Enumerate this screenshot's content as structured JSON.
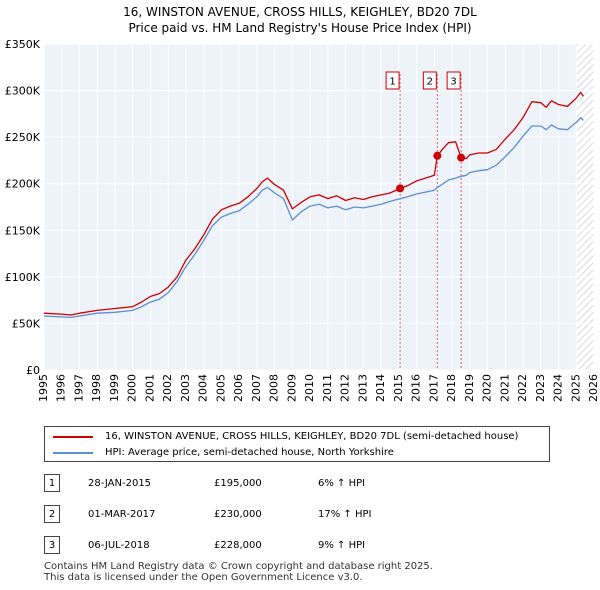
{
  "header": {
    "title_line1": "16, WINSTON AVENUE, CROSS HILLS, KEIGHLEY, BD20 7DL",
    "title_line2": "Price paid vs. HM Land Registry's House Price Index (HPI)"
  },
  "chart_data": {
    "type": "line",
    "title": "16, WINSTON AVENUE, CROSS HILLS, KEIGHLEY, BD20 7DL — Price paid vs. HM Land Registry's House Price Index (HPI)",
    "xlabel": "",
    "ylabel": "",
    "xlim": [
      1995,
      2026
    ],
    "ylim": [
      0,
      350000
    ],
    "y_ticks": [
      {
        "value": 0,
        "label": "£0"
      },
      {
        "value": 50000,
        "label": "£50K"
      },
      {
        "value": 100000,
        "label": "£100K"
      },
      {
        "value": 150000,
        "label": "£150K"
      },
      {
        "value": 200000,
        "label": "£200K"
      },
      {
        "value": 250000,
        "label": "£250K"
      },
      {
        "value": 300000,
        "label": "£300K"
      },
      {
        "value": 350000,
        "label": "£350K"
      }
    ],
    "x_ticks": [
      "1995",
      "1996",
      "1997",
      "1998",
      "1999",
      "2000",
      "2001",
      "2002",
      "2003",
      "2004",
      "2005",
      "2006",
      "2007",
      "2008",
      "2009",
      "2010",
      "2011",
      "2012",
      "2013",
      "2014",
      "2015",
      "2016",
      "2017",
      "2018",
      "2019",
      "2020",
      "2021",
      "2022",
      "2023",
      "2024",
      "2025",
      "2026"
    ],
    "grid": true,
    "forecast_start": 2025.0,
    "series": [
      {
        "name": "16, WINSTON AVENUE, CROSS HILLS, KEIGHLEY, BD20 7DL (semi-detached house)",
        "color": "#cc0000",
        "points": [
          [
            1995.0,
            61000
          ],
          [
            1996.0,
            60000
          ],
          [
            1996.5,
            59000
          ],
          [
            1997.0,
            61000
          ],
          [
            1998.0,
            64000
          ],
          [
            1999.0,
            66000
          ],
          [
            2000.0,
            68000
          ],
          [
            2000.5,
            73000
          ],
          [
            2001.0,
            79000
          ],
          [
            2001.5,
            82000
          ],
          [
            2002.0,
            89000
          ],
          [
            2002.5,
            100000
          ],
          [
            2003.0,
            118000
          ],
          [
            2003.5,
            130000
          ],
          [
            2004.0,
            145000
          ],
          [
            2004.5,
            162000
          ],
          [
            2005.0,
            172000
          ],
          [
            2005.5,
            176000
          ],
          [
            2006.0,
            179000
          ],
          [
            2006.5,
            186000
          ],
          [
            2007.0,
            195000
          ],
          [
            2007.3,
            202000
          ],
          [
            2007.6,
            206000
          ],
          [
            2008.0,
            199000
          ],
          [
            2008.5,
            193000
          ],
          [
            2009.0,
            173000
          ],
          [
            2009.5,
            180000
          ],
          [
            2010.0,
            186000
          ],
          [
            2010.5,
            188000
          ],
          [
            2011.0,
            184000
          ],
          [
            2011.5,
            187000
          ],
          [
            2012.0,
            182000
          ],
          [
            2012.5,
            185000
          ],
          [
            2013.0,
            183000
          ],
          [
            2013.5,
            186000
          ],
          [
            2014.0,
            188000
          ],
          [
            2014.5,
            190000
          ],
          [
            2015.07,
            195000
          ],
          [
            2015.5,
            198000
          ],
          [
            2016.0,
            203000
          ],
          [
            2016.5,
            206000
          ],
          [
            2017.0,
            209000
          ],
          [
            2017.17,
            230000
          ],
          [
            2017.5,
            238000
          ],
          [
            2017.8,
            244000
          ],
          [
            2018.2,
            245000
          ],
          [
            2018.51,
            228000
          ],
          [
            2018.8,
            227000
          ],
          [
            2019.0,
            231000
          ],
          [
            2019.5,
            233000
          ],
          [
            2020.0,
            233000
          ],
          [
            2020.5,
            237000
          ],
          [
            2021.0,
            248000
          ],
          [
            2021.5,
            258000
          ],
          [
            2022.0,
            271000
          ],
          [
            2022.5,
            288000
          ],
          [
            2023.0,
            287000
          ],
          [
            2023.3,
            282000
          ],
          [
            2023.6,
            289000
          ],
          [
            2024.0,
            285000
          ],
          [
            2024.5,
            283000
          ],
          [
            2025.0,
            292000
          ],
          [
            2025.25,
            298000
          ],
          [
            2025.4,
            294000
          ]
        ]
      },
      {
        "name": "HPI: Average price, semi-detached house, North Yorkshire",
        "color": "#5b8fd1",
        "points": [
          [
            1995.0,
            58000
          ],
          [
            1996.0,
            57000
          ],
          [
            1996.5,
            56500
          ],
          [
            1997.0,
            58000
          ],
          [
            1998.0,
            61000
          ],
          [
            1999.0,
            62000
          ],
          [
            2000.0,
            64000
          ],
          [
            2000.5,
            68000
          ],
          [
            2001.0,
            73000
          ],
          [
            2001.5,
            76000
          ],
          [
            2002.0,
            83000
          ],
          [
            2002.5,
            95000
          ],
          [
            2003.0,
            111000
          ],
          [
            2003.5,
            124000
          ],
          [
            2004.0,
            139000
          ],
          [
            2004.5,
            155000
          ],
          [
            2005.0,
            164000
          ],
          [
            2005.5,
            168000
          ],
          [
            2006.0,
            171000
          ],
          [
            2006.5,
            178000
          ],
          [
            2007.0,
            186000
          ],
          [
            2007.3,
            193000
          ],
          [
            2007.6,
            196000
          ],
          [
            2008.0,
            190000
          ],
          [
            2008.5,
            184000
          ],
          [
            2009.0,
            161000
          ],
          [
            2009.5,
            170000
          ],
          [
            2010.0,
            176000
          ],
          [
            2010.5,
            178000
          ],
          [
            2011.0,
            174000
          ],
          [
            2011.5,
            176000
          ],
          [
            2012.0,
            172000
          ],
          [
            2012.5,
            175000
          ],
          [
            2013.0,
            174000
          ],
          [
            2013.5,
            176000
          ],
          [
            2014.0,
            178000
          ],
          [
            2014.5,
            181000
          ],
          [
            2015.07,
            184000
          ],
          [
            2015.5,
            186000
          ],
          [
            2016.0,
            189000
          ],
          [
            2016.5,
            191000
          ],
          [
            2017.0,
            193000
          ],
          [
            2017.17,
            196000
          ],
          [
            2017.5,
            200000
          ],
          [
            2017.8,
            204000
          ],
          [
            2018.2,
            206000
          ],
          [
            2018.51,
            208000
          ],
          [
            2018.8,
            209000
          ],
          [
            2019.0,
            212000
          ],
          [
            2019.5,
            214000
          ],
          [
            2020.0,
            215000
          ],
          [
            2020.5,
            220000
          ],
          [
            2021.0,
            229000
          ],
          [
            2021.5,
            239000
          ],
          [
            2022.0,
            251000
          ],
          [
            2022.5,
            262000
          ],
          [
            2023.0,
            262000
          ],
          [
            2023.3,
            258000
          ],
          [
            2023.6,
            263000
          ],
          [
            2024.0,
            259000
          ],
          [
            2024.5,
            258000
          ],
          [
            2025.0,
            266000
          ],
          [
            2025.25,
            271000
          ],
          [
            2025.4,
            268000
          ]
        ]
      }
    ],
    "sales": [
      {
        "label": "1",
        "x": 2015.07,
        "value": 195000
      },
      {
        "label": "2",
        "x": 2017.17,
        "value": 230000
      },
      {
        "label": "3",
        "x": 2018.51,
        "value": 228000
      }
    ]
  },
  "legend": {
    "property_label": "16, WINSTON AVENUE, CROSS HILLS, KEIGHLEY, BD20 7DL (semi-detached house)",
    "hpi_label": "HPI: Average price, semi-detached house, North Yorkshire",
    "property_color": "#cc0000",
    "hpi_color": "#5b8fd1"
  },
  "transactions": [
    {
      "num": "1",
      "date": "28-JAN-2015",
      "price": "£195,000",
      "hpi": "6% ↑ HPI"
    },
    {
      "num": "2",
      "date": "01-MAR-2017",
      "price": "£230,000",
      "hpi": "17% ↑ HPI"
    },
    {
      "num": "3",
      "date": "06-JUL-2018",
      "price": "£228,000",
      "hpi": "9% ↑ HPI"
    }
  ],
  "footer": {
    "line1": "Contains HM Land Registry data © Crown copyright and database right 2025.",
    "line2": "This data is licensed under the Open Government Licence v3.0."
  }
}
